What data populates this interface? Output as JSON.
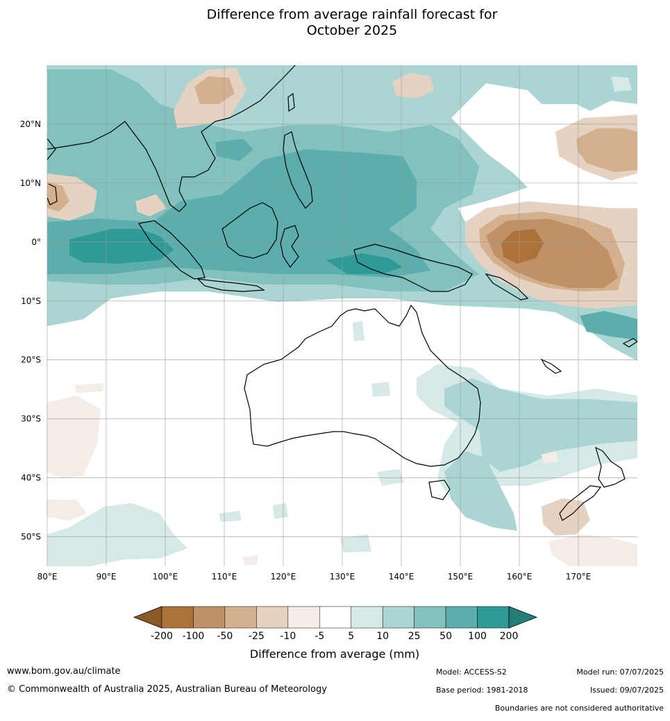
{
  "title_line1": "Difference from average rainfall forecast for",
  "title_line2": "October 2025",
  "map": {
    "lon_min": 80,
    "lon_max": 180,
    "lat_min": -55,
    "lat_max": 30,
    "lat_labels": [
      "20°N",
      "10°N",
      "0°",
      "10°S",
      "20°S",
      "30°S",
      "40°S",
      "50°S"
    ],
    "lon_labels": [
      "80°E",
      "90°E",
      "100°E",
      "110°E",
      "120°E",
      "130°E",
      "140°E",
      "150°E",
      "160°E",
      "170°E"
    ]
  },
  "colorbar": {
    "tick_labels": [
      "-200",
      "-100",
      "-50",
      "-25",
      "-10",
      "-5",
      "5",
      "10",
      "25",
      "50",
      "100",
      "200"
    ],
    "colors": [
      "#8c5a28",
      "#ab7339",
      "#c09167",
      "#d4b18e",
      "#e6d2c1",
      "#f4ece6",
      "#ffffff",
      "#d5eae8",
      "#aad5d3",
      "#82c1be",
      "#5baeac",
      "#309a96",
      "#257d79"
    ],
    "label": "Difference from average (mm)"
  },
  "footer": {
    "website": "www.bom.gov.au/climate",
    "copyright": "© Commonwealth of Australia 2025, Australian Bureau of Meteorology",
    "model": "Model: ACCESS-S2",
    "base_period": "Base period: 1981-2018",
    "model_run": "Model run: 07/07/2025",
    "issued": "Issued: 09/07/2025",
    "disclaimer": "Boundaries are not considered authoritative"
  }
}
